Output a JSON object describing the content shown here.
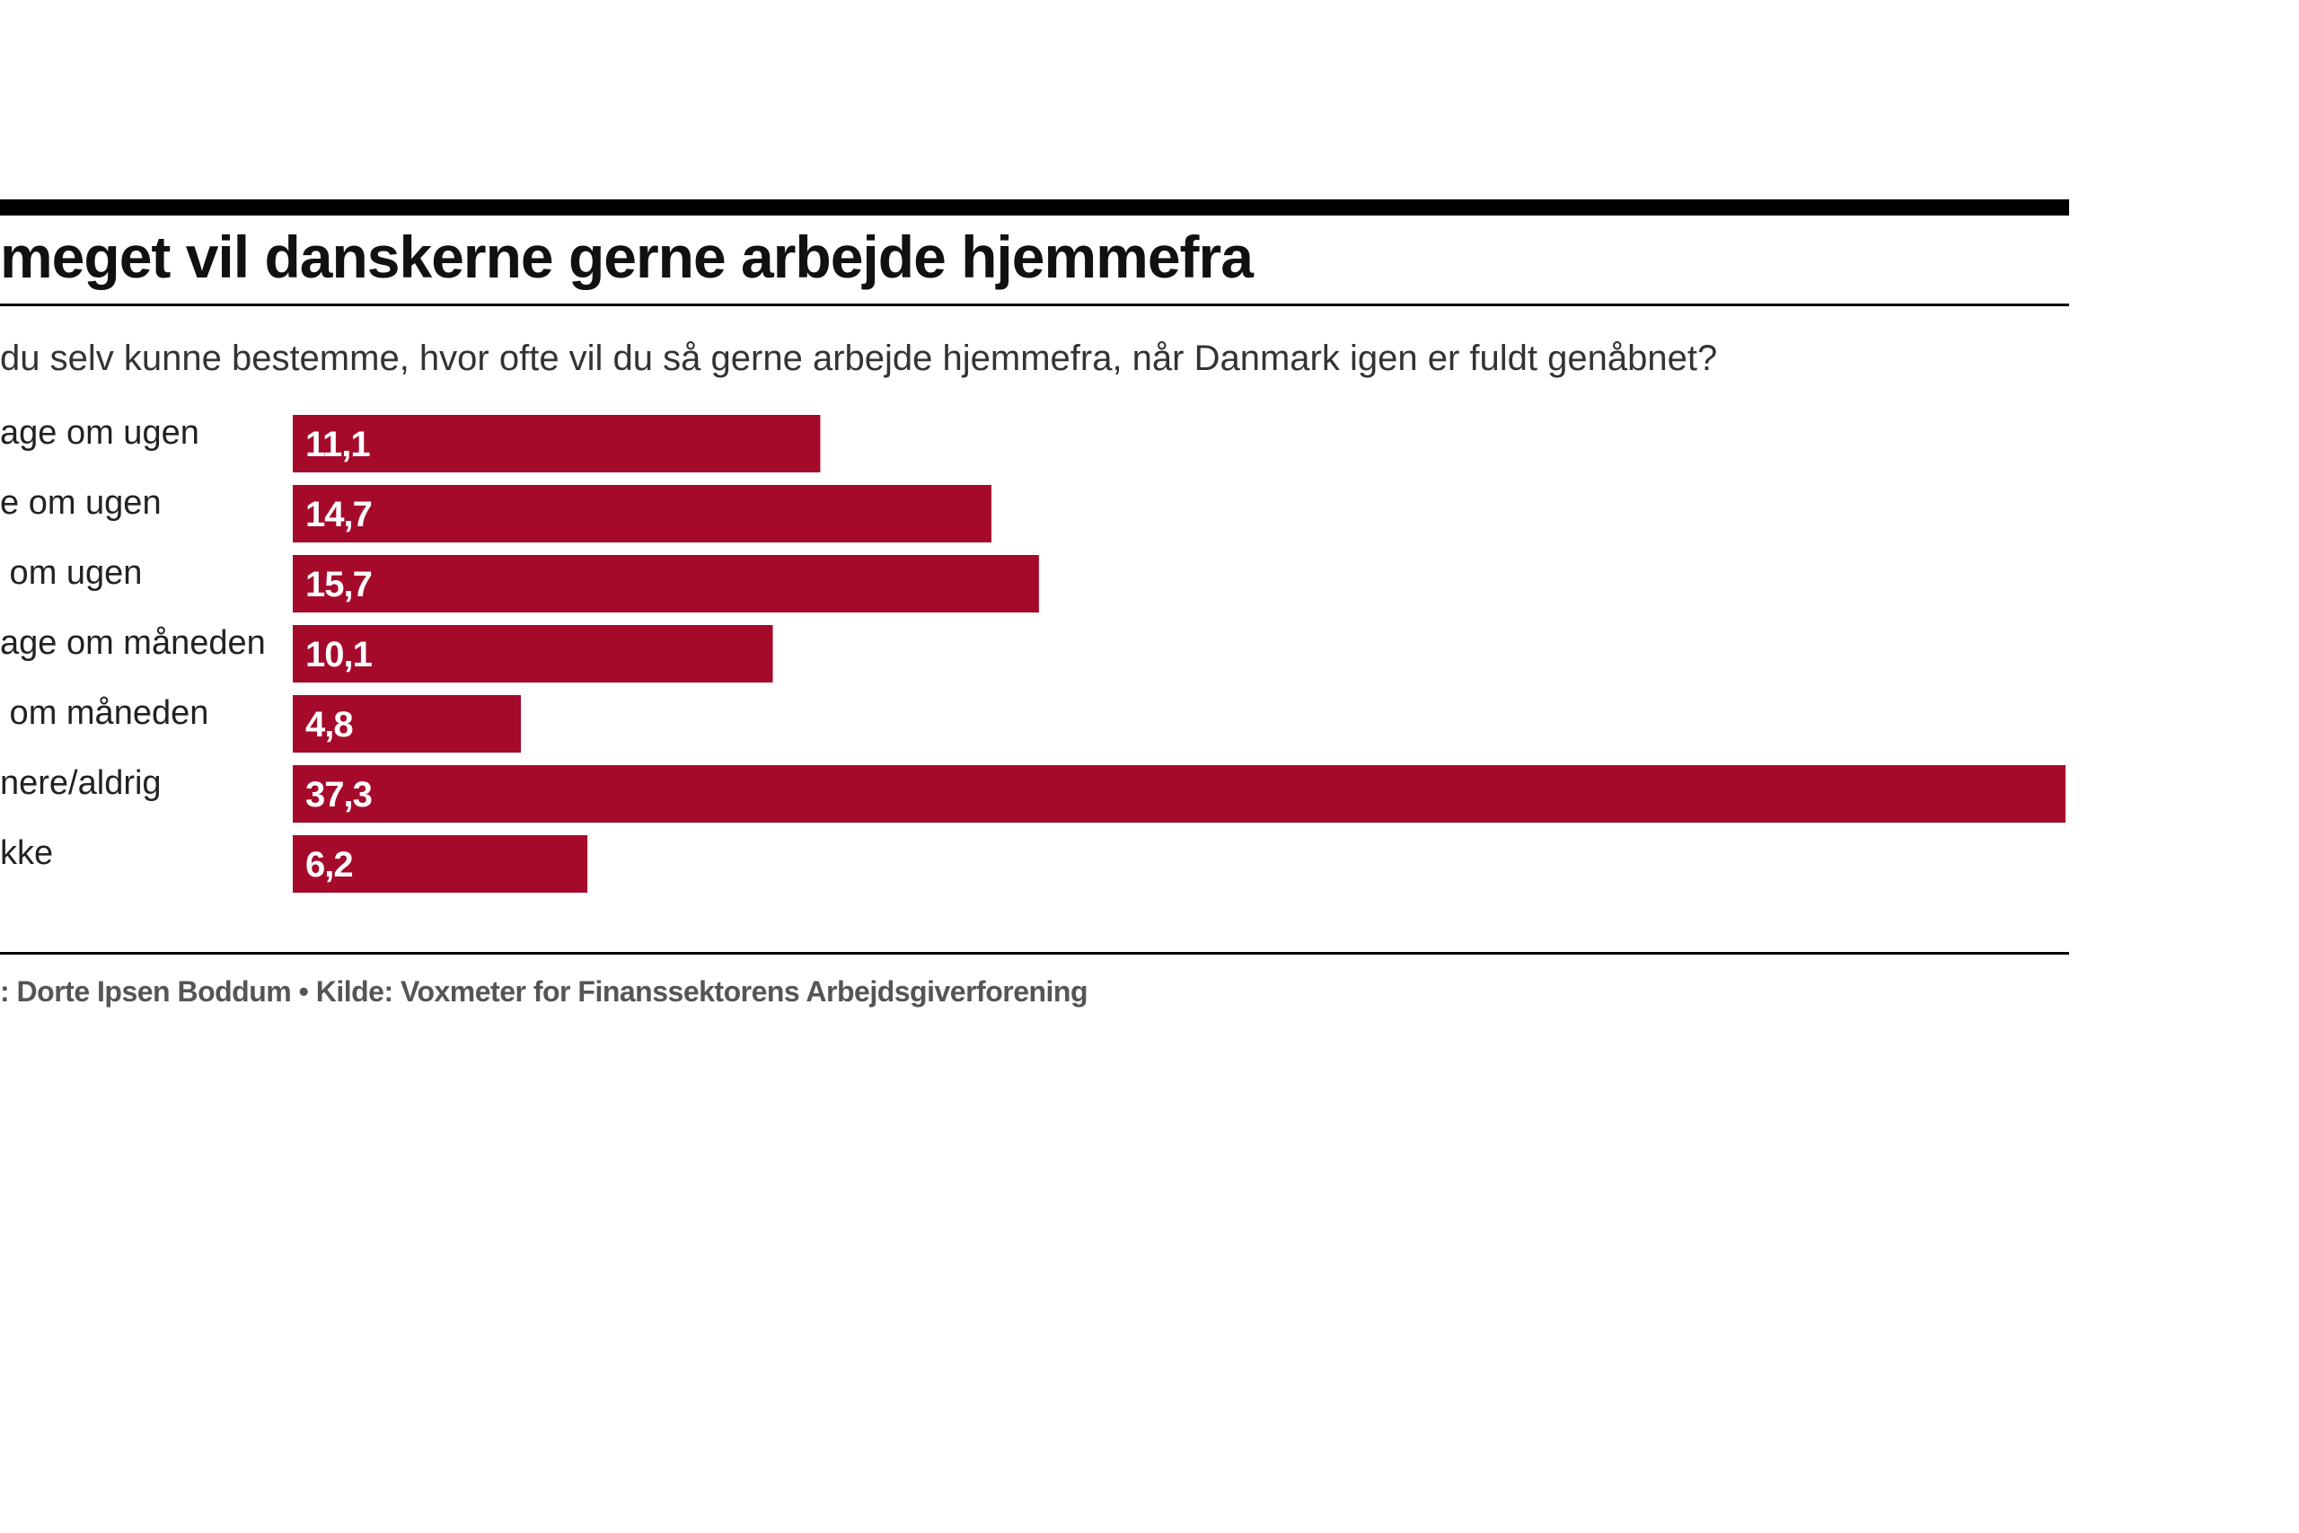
{
  "chart_data": {
    "type": "bar",
    "orientation": "horizontal",
    "title": "meget vil danskerne gerne arbejde hjemmefra",
    "subtitle": "du selv kunne bestemme, hvor ofte vil du så gerne arbejde hjemmefra, når Danmark igen er fuldt genåbnet?",
    "categories": [
      "age om ugen",
      "e om ugen",
      " om ugen",
      "age om måneden",
      " om måneden",
      "nere/aldrig",
      "kke"
    ],
    "values": [
      11.1,
      14.7,
      15.7,
      10.1,
      4.8,
      37.3,
      6.2
    ],
    "value_labels": [
      "11,1",
      "14,7",
      "15,7",
      "10,1",
      "4,8",
      "37,3",
      "6,2"
    ],
    "xlim": [
      0,
      37.3
    ],
    "grid": false,
    "legend": "none",
    "bar_color": "#a50a2a",
    "label_color": "#ffffff",
    "footer": ": Dorte Ipsen Boddum • Kilde: Voxmeter for Finanssektorens Arbejdsgiverforening"
  }
}
